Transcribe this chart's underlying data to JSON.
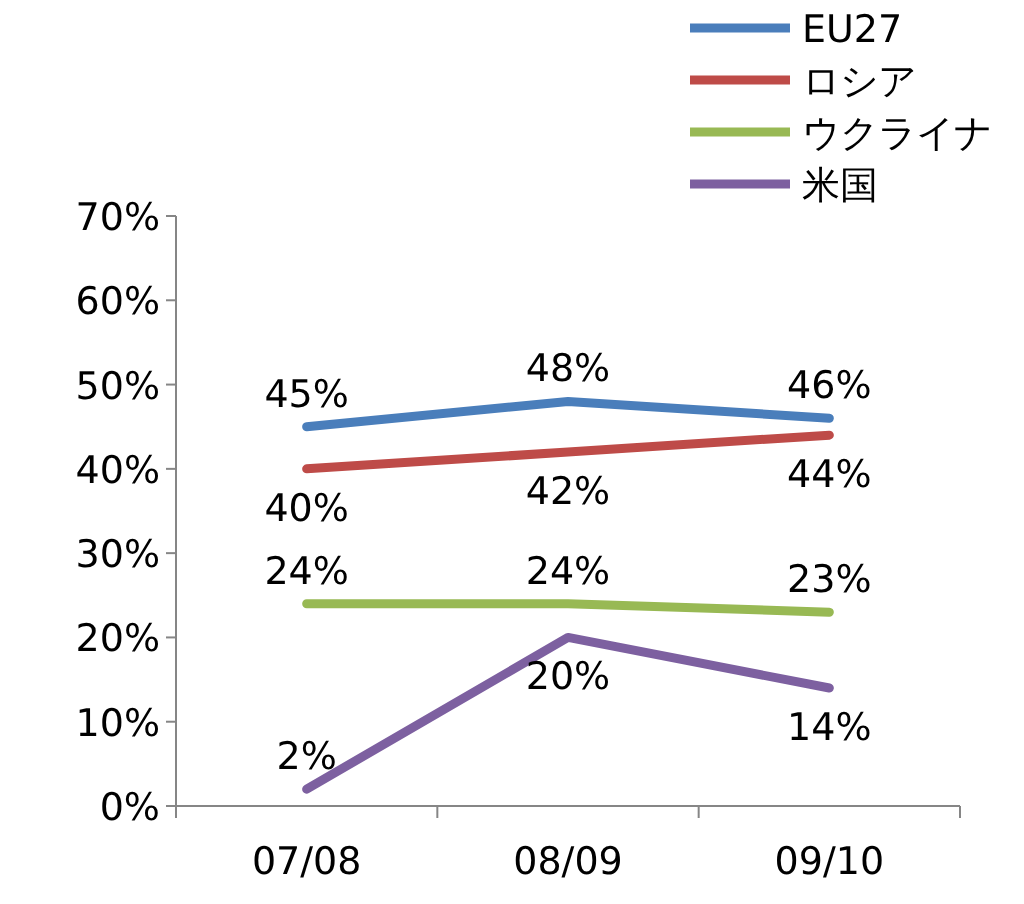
{
  "chart_data": {
    "type": "line",
    "categories": [
      "07/08",
      "08/09",
      "09/10"
    ],
    "series": [
      {
        "name": "EU27",
        "color": "#4a7ebb",
        "values": [
          45,
          48,
          46
        ],
        "value_labels": [
          "45%",
          "48%",
          "46%"
        ]
      },
      {
        "name": "ロシア",
        "color": "#be4b48",
        "values": [
          40,
          42,
          44
        ],
        "value_labels": [
          "40%",
          "42%",
          "44%"
        ]
      },
      {
        "name": "ウクライナ",
        "color": "#98b954",
        "values": [
          24,
          24,
          23
        ],
        "value_labels": [
          "24%",
          "24%",
          "23%"
        ]
      },
      {
        "name": "米国",
        "color": "#7d60a0",
        "values": [
          2,
          20,
          14
        ],
        "value_labels": [
          "2%",
          "20%",
          "14%"
        ]
      }
    ],
    "ylim": [
      0,
      70
    ],
    "yticks": [
      {
        "value": 0,
        "label": "0%"
      },
      {
        "value": 10,
        "label": "10%"
      },
      {
        "value": 20,
        "label": "20%"
      },
      {
        "value": 30,
        "label": "30%"
      },
      {
        "value": 40,
        "label": "40%"
      },
      {
        "value": 50,
        "label": "50%"
      },
      {
        "value": 60,
        "label": "60%"
      },
      {
        "value": 70,
        "label": "70%"
      }
    ],
    "legend": "top right",
    "grid": false,
    "marker": "none",
    "line_style": "solid"
  }
}
